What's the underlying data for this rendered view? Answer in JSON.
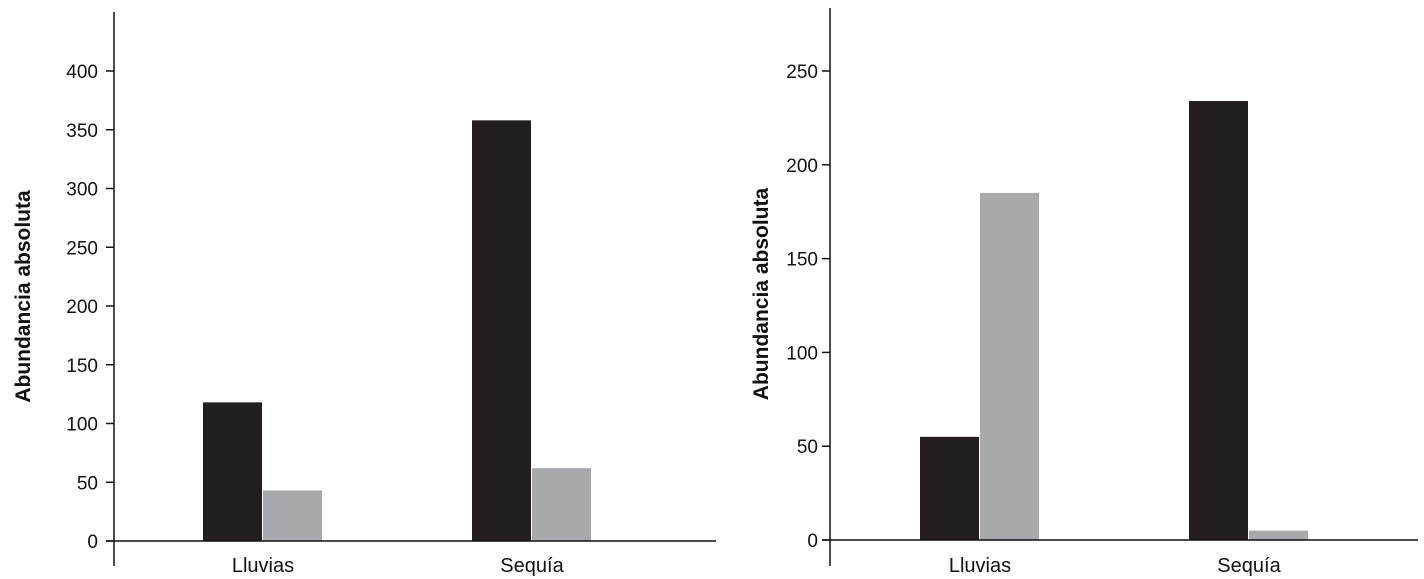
{
  "chart_data": [
    {
      "type": "bar",
      "title": "",
      "xlabel": "",
      "ylabel": "Abundancia absoluta",
      "ylim": [
        0,
        440
      ],
      "yticks": [
        0,
        50,
        100,
        150,
        200,
        250,
        300,
        350,
        400
      ],
      "categories": [
        "Lluvias",
        "Sequía"
      ],
      "series": [
        {
          "color": "#231f20",
          "values": [
            118,
            358
          ]
        },
        {
          "color": "#a7a9ac",
          "values": [
            43,
            62
          ]
        }
      ],
      "grid": false,
      "legend": "none"
    },
    {
      "type": "bar",
      "title": "",
      "xlabel": "",
      "ylabel": "Abundancia absoluta",
      "ylim": [
        0,
        285
      ],
      "yticks": [
        0,
        50,
        100,
        150,
        200,
        250
      ],
      "categories": [
        "Lluvias",
        "Sequía"
      ],
      "series": [
        {
          "color": "#231f20",
          "values": [
            55,
            234
          ]
        },
        {
          "color": "#a7a9ac",
          "values": [
            185,
            5
          ]
        }
      ],
      "grid": false,
      "legend": "none"
    }
  ]
}
